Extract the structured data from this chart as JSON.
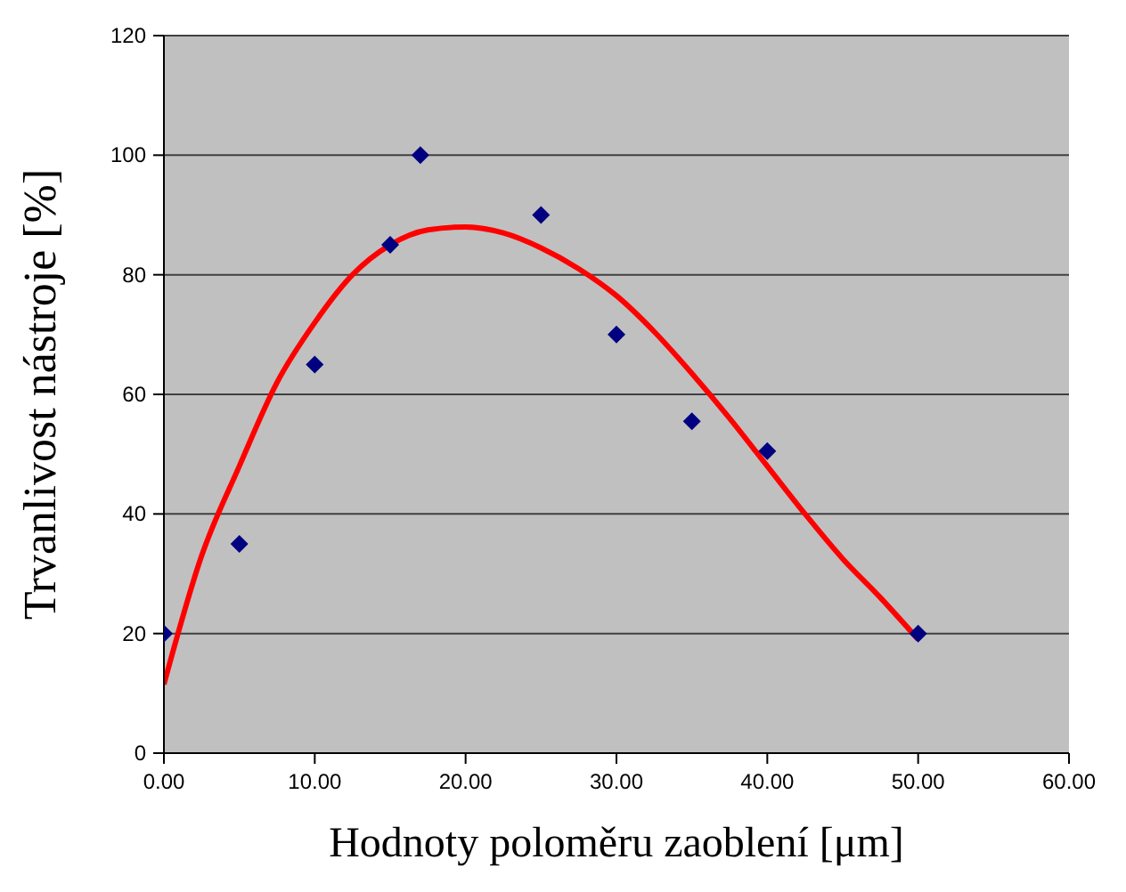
{
  "chart_data": {
    "type": "scatter",
    "xlabel": "Hodnoty poloměru zaoblení [μm]",
    "ylabel": "Trvanlivost nástroje [%]",
    "xlim": [
      0,
      60
    ],
    "xticks": [
      {
        "value": 0,
        "label": "0.00"
      },
      {
        "value": 10,
        "label": "10.00"
      },
      {
        "value": 20,
        "label": "20.00"
      },
      {
        "value": 30,
        "label": "30.00"
      },
      {
        "value": 40,
        "label": "40.00"
      },
      {
        "value": 50,
        "label": "50.00"
      },
      {
        "value": 60,
        "label": "60.00"
      }
    ],
    "ylim": [
      0,
      120
    ],
    "yticks": [
      0,
      20,
      40,
      60,
      80,
      100,
      120
    ],
    "grid": "y",
    "legend": false,
    "series": [
      {
        "color": "#000080",
        "marker": "diamond",
        "x": [
          0,
          5,
          10,
          15,
          17,
          25,
          30,
          35,
          40,
          50
        ],
        "values": [
          20,
          35,
          65,
          85,
          100,
          90,
          70,
          55.5,
          50.5,
          20
        ]
      },
      {
        "type": "line",
        "color": "#ff0000",
        "marker": "none",
        "line_style": "solid",
        "x": [
          0,
          2.5,
          5,
          7.5,
          10,
          12.5,
          15,
          17.5,
          20,
          22.5,
          25,
          27.5,
          30,
          32.5,
          35,
          37.5,
          40,
          42.5,
          45,
          47.5,
          50
        ],
        "values": [
          11.5,
          33,
          48,
          62,
          72,
          80,
          85,
          87.5,
          88,
          87,
          84.5,
          81,
          76.5,
          70.5,
          63.5,
          56,
          48,
          40,
          32.5,
          26,
          19
        ]
      }
    ]
  }
}
